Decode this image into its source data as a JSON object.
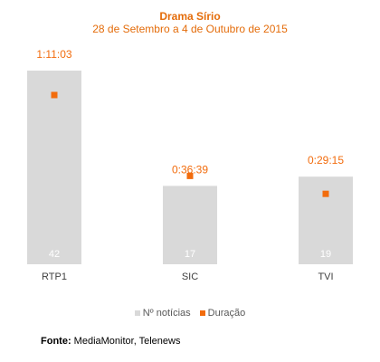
{
  "colors": {
    "bar": "#d9d9d9",
    "point": "#f26c0d",
    "title": "#e46c0a",
    "axis_text": "#404040",
    "bar_label": "#ffffff"
  },
  "chart_data": {
    "type": "bar",
    "title": "Drama Sírio",
    "subtitle": "28 de Setembro a 4 de Outubro de 2015",
    "categories": [
      "RTP1",
      "SIC",
      "TVI"
    ],
    "series": [
      {
        "name": "Nº notícias",
        "type": "bar",
        "values": [
          42,
          17,
          19
        ],
        "labels": [
          "42",
          "17",
          "19"
        ]
      },
      {
        "name": "Duração",
        "type": "point",
        "values_seconds": [
          4263,
          2199,
          1755
        ],
        "labels": [
          "1:11:03",
          "0:36:39",
          "0:29:15"
        ]
      }
    ],
    "ylim_bars": [
      0,
      42
    ],
    "legend_position": "bottom",
    "grid": false
  },
  "source": {
    "label": "Fonte:",
    "text": " MediaMonitor, Telenews"
  }
}
